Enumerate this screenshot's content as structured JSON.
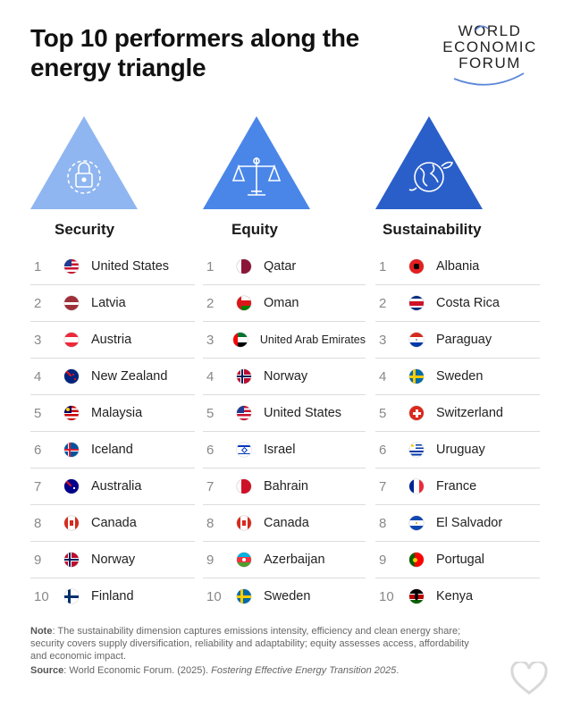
{
  "title": "Top 10 performers along the energy triangle",
  "logo": {
    "line1": "WORLD",
    "line2": "ECONOMIC",
    "line3": "FORUM"
  },
  "columns": [
    {
      "name": "Security",
      "icon": "lock-icon",
      "color": "#8fb6f0",
      "rows": [
        {
          "rank": "1",
          "country": "United States",
          "flag": "us"
        },
        {
          "rank": "2",
          "country": "Latvia",
          "flag": "lv"
        },
        {
          "rank": "3",
          "country": "Austria",
          "flag": "at"
        },
        {
          "rank": "4",
          "country": "New Zealand",
          "flag": "nz"
        },
        {
          "rank": "5",
          "country": "Malaysia",
          "flag": "my"
        },
        {
          "rank": "6",
          "country": "Iceland",
          "flag": "is"
        },
        {
          "rank": "7",
          "country": "Australia",
          "flag": "au"
        },
        {
          "rank": "8",
          "country": "Canada",
          "flag": "ca"
        },
        {
          "rank": "9",
          "country": "Norway",
          "flag": "no"
        },
        {
          "rank": "10",
          "country": "Finland",
          "flag": "fi"
        }
      ]
    },
    {
      "name": "Equity",
      "icon": "scales-icon",
      "color": "#4a86e8",
      "rows": [
        {
          "rank": "1",
          "country": "Qatar",
          "flag": "qa"
        },
        {
          "rank": "2",
          "country": "Oman",
          "flag": "om"
        },
        {
          "rank": "3",
          "country": "United Arab Emirates",
          "flag": "ae"
        },
        {
          "rank": "4",
          "country": "Norway",
          "flag": "no"
        },
        {
          "rank": "5",
          "country": "United States",
          "flag": "us"
        },
        {
          "rank": "6",
          "country": "Israel",
          "flag": "il"
        },
        {
          "rank": "7",
          "country": "Bahrain",
          "flag": "bh"
        },
        {
          "rank": "8",
          "country": "Canada",
          "flag": "ca"
        },
        {
          "rank": "9",
          "country": "Azerbaijan",
          "flag": "az"
        },
        {
          "rank": "10",
          "country": "Sweden",
          "flag": "se"
        }
      ]
    },
    {
      "name": "Sustainability",
      "icon": "globe-leaf-icon",
      "color": "#2a5fc9",
      "rows": [
        {
          "rank": "1",
          "country": "Albania",
          "flag": "al"
        },
        {
          "rank": "2",
          "country": "Costa Rica",
          "flag": "cr"
        },
        {
          "rank": "3",
          "country": "Paraguay",
          "flag": "py"
        },
        {
          "rank": "4",
          "country": "Sweden",
          "flag": "se"
        },
        {
          "rank": "5",
          "country": "Switzerland",
          "flag": "ch"
        },
        {
          "rank": "6",
          "country": "Uruguay",
          "flag": "uy"
        },
        {
          "rank": "7",
          "country": "France",
          "flag": "fr"
        },
        {
          "rank": "8",
          "country": "El Salvador",
          "flag": "sv"
        },
        {
          "rank": "9",
          "country": "Portugal",
          "flag": "pt"
        },
        {
          "rank": "10",
          "country": "Kenya",
          "flag": "ke"
        }
      ]
    }
  ],
  "note": {
    "label": "Note",
    "text": ": The sustainability dimension captures emissions intensity, efficiency and clean energy share; security covers supply diversification, reliability and adaptability; equity assesses access, affordability and economic impact."
  },
  "source": {
    "label": "Source",
    "text": ": World Economic Forum. (2025). ",
    "italic": "Fostering Effective Energy Transition 2025",
    "end": "."
  }
}
